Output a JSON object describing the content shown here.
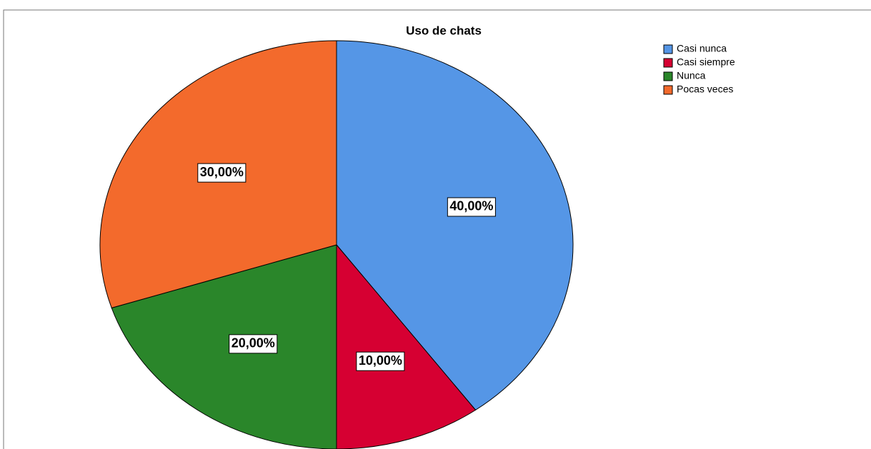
{
  "chart_data": {
    "type": "pie",
    "title": "Uso de chats",
    "categories": [
      "Casi nunca",
      "Casi siempre",
      "Nunca",
      "Pocas veces"
    ],
    "values": [
      40,
      10,
      20,
      30
    ],
    "value_labels": [
      "40,00%",
      "10,00%",
      "20,00%",
      "30,00%"
    ],
    "colors": [
      "#5596e6",
      "#d60032",
      "#2a862a",
      "#f36a2c"
    ],
    "legend": "top-right"
  }
}
